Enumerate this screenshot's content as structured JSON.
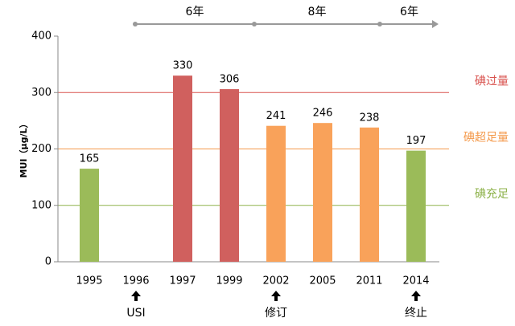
{
  "chart_data": {
    "type": "bar",
    "y_label": "MUI（μg/L）",
    "categories": [
      "1995",
      "1996",
      "1997",
      "1999",
      "2002",
      "2005",
      "2011",
      "2014"
    ],
    "values": [
      165,
      null,
      330,
      306,
      241,
      246,
      238,
      197
    ],
    "colors": [
      "#9bbb59",
      null,
      "#d0605e",
      "#d0605e",
      "#f9a25a",
      "#f9a25a",
      "#f9a25a",
      "#9bbb59"
    ],
    "notes": [
      null,
      "USI",
      null,
      null,
      "修订",
      null,
      null,
      "终止"
    ],
    "periods": [
      "6年",
      "8年",
      "6年"
    ],
    "reference_lines": [
      {
        "value": 300,
        "label": "碘过量",
        "color": "#d9534f"
      },
      {
        "value": 200,
        "label": "碘超足量",
        "color": "#f49a4c"
      },
      {
        "value": 100,
        "label": "碘充足",
        "color": "#8db24a"
      }
    ],
    "ylim": [
      0,
      400
    ],
    "yticks": [
      0,
      100,
      200,
      300,
      400
    ]
  }
}
